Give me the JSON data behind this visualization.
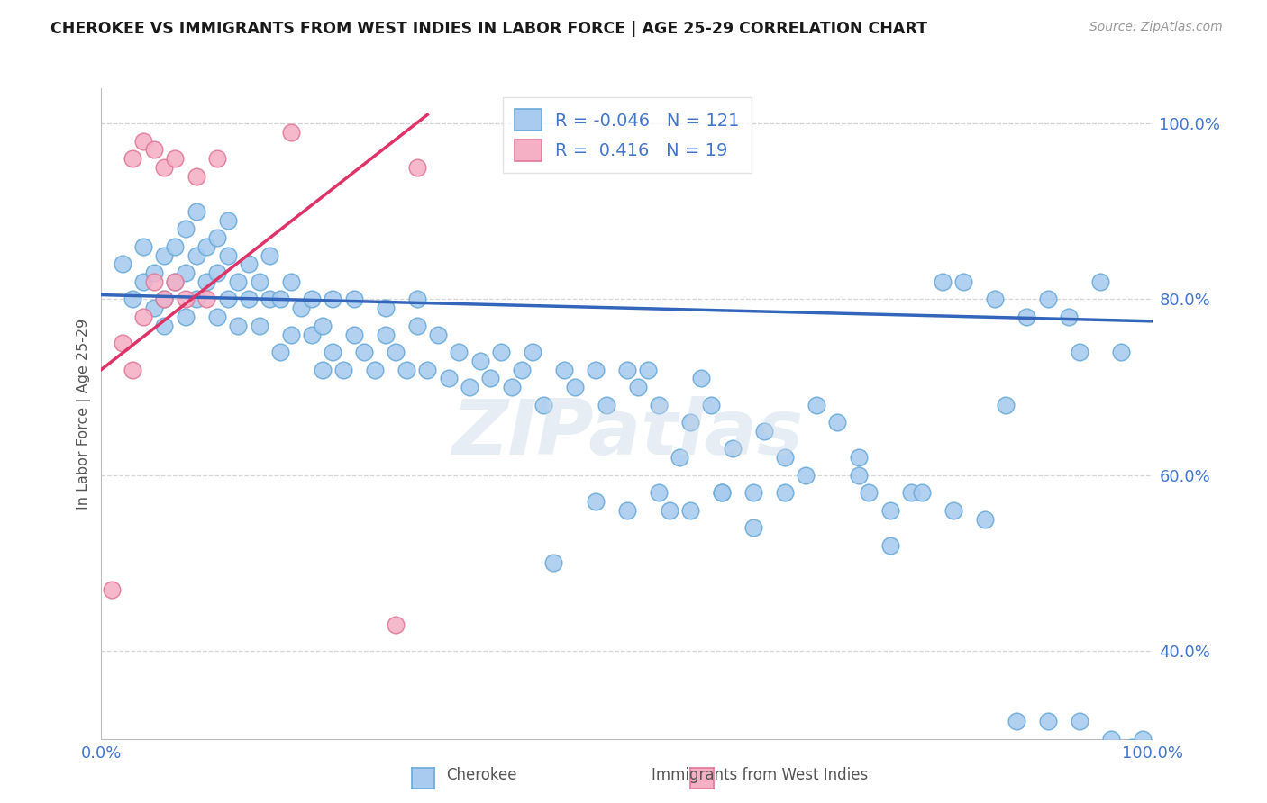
{
  "title": "CHEROKEE VS IMMIGRANTS FROM WEST INDIES IN LABOR FORCE | AGE 25-29 CORRELATION CHART",
  "source": "Source: ZipAtlas.com",
  "ylabel": "In Labor Force | Age 25-29",
  "xlim": [
    0.0,
    1.0
  ],
  "ylim": [
    0.3,
    1.04
  ],
  "yticks": [
    0.4,
    0.6,
    0.8,
    1.0
  ],
  "ytick_labels": [
    "40.0%",
    "60.0%",
    "80.0%",
    "100.0%"
  ],
  "xticks": [
    0.0,
    1.0
  ],
  "xtick_labels": [
    "0.0%",
    "100.0%"
  ],
  "cherokee_R": -0.046,
  "cherokee_N": 121,
  "westindies_R": 0.416,
  "westindies_N": 19,
  "blue_color": "#a8cbef",
  "blue_edge": "#6aaad8",
  "pink_color": "#f5b0c5",
  "pink_edge": "#e07898",
  "blue_line_color": "#3366bb",
  "pink_line_color": "#dd3366",
  "grid_color": "#cccccc",
  "background_color": "#ffffff",
  "title_color": "#1a1a1a",
  "tick_color": "#4477cc",
  "cherokee_x": [
    0.02,
    0.03,
    0.04,
    0.04,
    0.05,
    0.05,
    0.06,
    0.06,
    0.06,
    0.07,
    0.07,
    0.08,
    0.08,
    0.08,
    0.09,
    0.09,
    0.09,
    0.1,
    0.1,
    0.11,
    0.11,
    0.11,
    0.12,
    0.12,
    0.12,
    0.13,
    0.13,
    0.14,
    0.14,
    0.15,
    0.15,
    0.16,
    0.16,
    0.17,
    0.17,
    0.18,
    0.18,
    0.19,
    0.2,
    0.2,
    0.21,
    0.21,
    0.22,
    0.22,
    0.23,
    0.24,
    0.24,
    0.25,
    0.26,
    0.27,
    0.27,
    0.28,
    0.29,
    0.3,
    0.3,
    0.31,
    0.32,
    0.33,
    0.34,
    0.35,
    0.36,
    0.37,
    0.38,
    0.39,
    0.4,
    0.41,
    0.42,
    0.44,
    0.45,
    0.47,
    0.48,
    0.5,
    0.51,
    0.52,
    0.53,
    0.55,
    0.56,
    0.57,
    0.58,
    0.6,
    0.62,
    0.63,
    0.65,
    0.67,
    0.68,
    0.7,
    0.72,
    0.73,
    0.75,
    0.77,
    0.8,
    0.82,
    0.85,
    0.86,
    0.88,
    0.9,
    0.92,
    0.93,
    0.95,
    0.97,
    0.54,
    0.59,
    0.65,
    0.72,
    0.75,
    0.78,
    0.81,
    0.84,
    0.87,
    0.9,
    0.93,
    0.96,
    0.99,
    0.43,
    0.47,
    0.5,
    0.53,
    0.56,
    0.59,
    0.62,
    0.98
  ],
  "cherokee_y": [
    0.84,
    0.8,
    0.82,
    0.86,
    0.79,
    0.83,
    0.85,
    0.8,
    0.77,
    0.82,
    0.86,
    0.78,
    0.83,
    0.88,
    0.8,
    0.85,
    0.9,
    0.82,
    0.86,
    0.78,
    0.83,
    0.87,
    0.8,
    0.85,
    0.89,
    0.82,
    0.77,
    0.8,
    0.84,
    0.77,
    0.82,
    0.8,
    0.85,
    0.74,
    0.8,
    0.76,
    0.82,
    0.79,
    0.76,
    0.8,
    0.72,
    0.77,
    0.74,
    0.8,
    0.72,
    0.76,
    0.8,
    0.74,
    0.72,
    0.76,
    0.79,
    0.74,
    0.72,
    0.77,
    0.8,
    0.72,
    0.76,
    0.71,
    0.74,
    0.7,
    0.73,
    0.71,
    0.74,
    0.7,
    0.72,
    0.74,
    0.68,
    0.72,
    0.7,
    0.72,
    0.68,
    0.72,
    0.7,
    0.72,
    0.68,
    0.62,
    0.66,
    0.71,
    0.68,
    0.63,
    0.58,
    0.65,
    0.62,
    0.6,
    0.68,
    0.66,
    0.62,
    0.58,
    0.52,
    0.58,
    0.82,
    0.82,
    0.8,
    0.68,
    0.78,
    0.8,
    0.78,
    0.74,
    0.82,
    0.74,
    0.56,
    0.58,
    0.58,
    0.6,
    0.56,
    0.58,
    0.56,
    0.55,
    0.32,
    0.32,
    0.32,
    0.3,
    0.3,
    0.5,
    0.57,
    0.56,
    0.58,
    0.56,
    0.58,
    0.54,
    0.29
  ],
  "westindies_x": [
    0.01,
    0.02,
    0.03,
    0.03,
    0.04,
    0.04,
    0.05,
    0.05,
    0.06,
    0.06,
    0.07,
    0.07,
    0.08,
    0.09,
    0.1,
    0.11,
    0.18,
    0.28,
    0.3
  ],
  "westindies_y": [
    0.47,
    0.75,
    0.72,
    0.96,
    0.78,
    0.98,
    0.82,
    0.97,
    0.8,
    0.95,
    0.82,
    0.96,
    0.8,
    0.94,
    0.8,
    0.96,
    0.99,
    0.43,
    0.95
  ],
  "blue_line_x0": 0.0,
  "blue_line_x1": 1.0,
  "blue_line_y0": 0.805,
  "blue_line_y1": 0.775,
  "pink_line_x0": 0.0,
  "pink_line_x1": 0.31,
  "pink_line_y0": 0.72,
  "pink_line_y1": 1.01
}
